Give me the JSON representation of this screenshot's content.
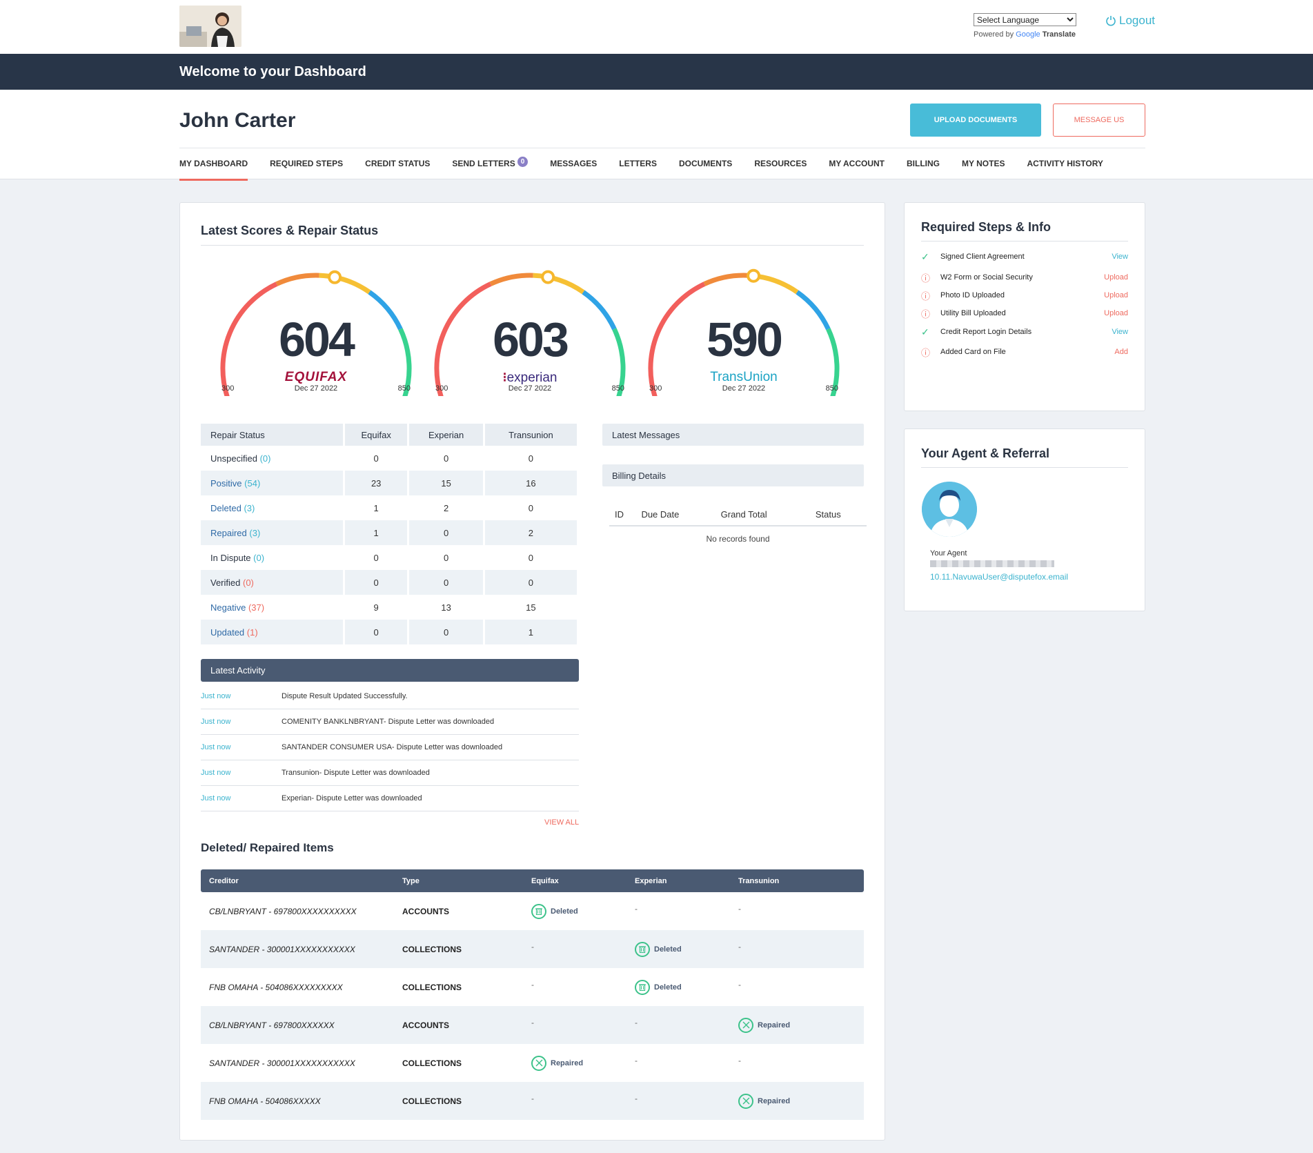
{
  "header": {
    "language_select": "Select Language",
    "powered_by": "Powered by",
    "google": "Google",
    "translate": "Translate",
    "logout": "Logout",
    "banner": "Welcome to your Dashboard",
    "client_name": "John Carter",
    "upload_btn": "UPLOAD DOCUMENTS",
    "message_btn": "MESSAGE US"
  },
  "nav": {
    "items": [
      "MY DASHBOARD",
      "REQUIRED STEPS",
      "CREDIT STATUS",
      "SEND LETTERS",
      "MESSAGES",
      "LETTERS",
      "DOCUMENTS",
      "RESOURCES",
      "MY ACCOUNT",
      "BILLING",
      "MY NOTES",
      "ACTIVITY HISTORY"
    ],
    "send_letters_badge": "0",
    "active": "MY DASHBOARD"
  },
  "scores": {
    "title": "Latest Scores & Repair Status",
    "gauges": [
      {
        "score": "604",
        "bureau": "EQUIFAX",
        "date": "Dec 27 2022",
        "min": "300",
        "max": "850",
        "value": 604,
        "color": "#a3113a"
      },
      {
        "score": "603",
        "bureau": "experian",
        "date": "Dec 27 2022",
        "min": "300",
        "max": "850",
        "value": 603,
        "color": "#3a2a7c"
      },
      {
        "score": "590",
        "bureau": "TransUnion",
        "date": "Dec 27 2022",
        "min": "300",
        "max": "850",
        "value": 590,
        "color": "#1ba3c4"
      }
    ]
  },
  "repair": {
    "headers": [
      "Repair Status",
      "Equifax",
      "Experian",
      "Transunion"
    ],
    "rows": [
      {
        "label": "Unspecified",
        "count": "(0)",
        "eq": "0",
        "ex": "0",
        "tu": "0",
        "lc": "d",
        "cc": "b"
      },
      {
        "label": "Positive",
        "count": "(54)",
        "eq": "23",
        "ex": "15",
        "tu": "16",
        "lc": "b",
        "cc": "b"
      },
      {
        "label": "Deleted",
        "count": "(3)",
        "eq": "1",
        "ex": "2",
        "tu": "0",
        "lc": "b",
        "cc": "b"
      },
      {
        "label": "Repaired",
        "count": "(3)",
        "eq": "1",
        "ex": "0",
        "tu": "2",
        "lc": "b",
        "cc": "b"
      },
      {
        "label": "In Dispute",
        "count": "(0)",
        "eq": "0",
        "ex": "0",
        "tu": "0",
        "lc": "d",
        "cc": "b"
      },
      {
        "label": "Verified",
        "count": "(0)",
        "eq": "0",
        "ex": "0",
        "tu": "0",
        "lc": "d",
        "cc": "r"
      },
      {
        "label": "Negative",
        "count": "(37)",
        "eq": "9",
        "ex": "13",
        "tu": "15",
        "lc": "b",
        "cc": "r"
      },
      {
        "label": "Updated",
        "count": "(1)",
        "eq": "0",
        "ex": "0",
        "tu": "1",
        "lc": "b",
        "cc": "r"
      }
    ]
  },
  "messages": {
    "title": "Latest Messages"
  },
  "billing": {
    "title": "Billing Details",
    "headers": [
      "ID",
      "Due Date",
      "Grand Total",
      "Status"
    ],
    "empty": "No records found"
  },
  "activity": {
    "title": "Latest Activity",
    "items": [
      {
        "time": "Just now",
        "msg": "Dispute Result Updated Successfully."
      },
      {
        "time": "Just now",
        "msg": "COMENITY BANKLNBRYANT- Dispute Letter was downloaded"
      },
      {
        "time": "Just now",
        "msg": "SANTANDER CONSUMER USA- Dispute Letter was downloaded"
      },
      {
        "time": "Just now",
        "msg": "Transunion- Dispute Letter was downloaded"
      },
      {
        "time": "Just now",
        "msg": "Experian- Dispute Letter was downloaded"
      }
    ],
    "view_all": "VIEW ALL"
  },
  "deleted": {
    "title": "Deleted/ Repaired Items",
    "headers": [
      "Creditor",
      "Type",
      "Equifax",
      "Experian",
      "Transunion"
    ],
    "rows": [
      {
        "creditor": "CB/LNBRYANT - 697800XXXXXXXXXX",
        "type": "ACCOUNTS",
        "eq": "Deleted",
        "ex": "-",
        "tu": "-"
      },
      {
        "creditor": "SANTANDER - 300001XXXXXXXXXXX",
        "type": "COLLECTIONS",
        "eq": "-",
        "ex": "Deleted",
        "tu": "-"
      },
      {
        "creditor": "FNB OMAHA - 504086XXXXXXXXX",
        "type": "COLLECTIONS",
        "eq": "-",
        "ex": "Deleted",
        "tu": "-"
      },
      {
        "creditor": "CB/LNBRYANT - 697800XXXXXX",
        "type": "ACCOUNTS",
        "eq": "-",
        "ex": "-",
        "tu": "Repaired"
      },
      {
        "creditor": "SANTANDER - 300001XXXXXXXXXXX",
        "type": "COLLECTIONS",
        "eq": "Repaired",
        "ex": "-",
        "tu": "-"
      },
      {
        "creditor": "FNB OMAHA - 504086XXXXX",
        "type": "COLLECTIONS",
        "eq": "-",
        "ex": "-",
        "tu": "Repaired"
      }
    ]
  },
  "steps": {
    "title": "Required Steps & Info",
    "items": [
      {
        "label": "Signed Client Agreement",
        "action": "View",
        "status": "ok"
      },
      {
        "label": "W2 Form or Social Security",
        "action": "Upload",
        "status": "warn"
      },
      {
        "label": "Photo ID Uploaded",
        "action": "Upload",
        "status": "warn"
      },
      {
        "label": "Utility Bill Uploaded",
        "action": "Upload",
        "status": "warn"
      },
      {
        "label": "Credit Report Login Details",
        "action": "View",
        "status": "ok"
      },
      {
        "label": "Added Card on File",
        "action": "Add",
        "status": "warn"
      }
    ]
  },
  "agent": {
    "title": "Your Agent & Referral",
    "label": "Your Agent",
    "email": "10.11.NavuwaUser@disputefox.email"
  },
  "icons": {
    "logout": "power-icon",
    "check": "check-icon",
    "warn": "alert-circle-icon",
    "deleted": "trash-icon",
    "repaired": "tools-icon"
  }
}
